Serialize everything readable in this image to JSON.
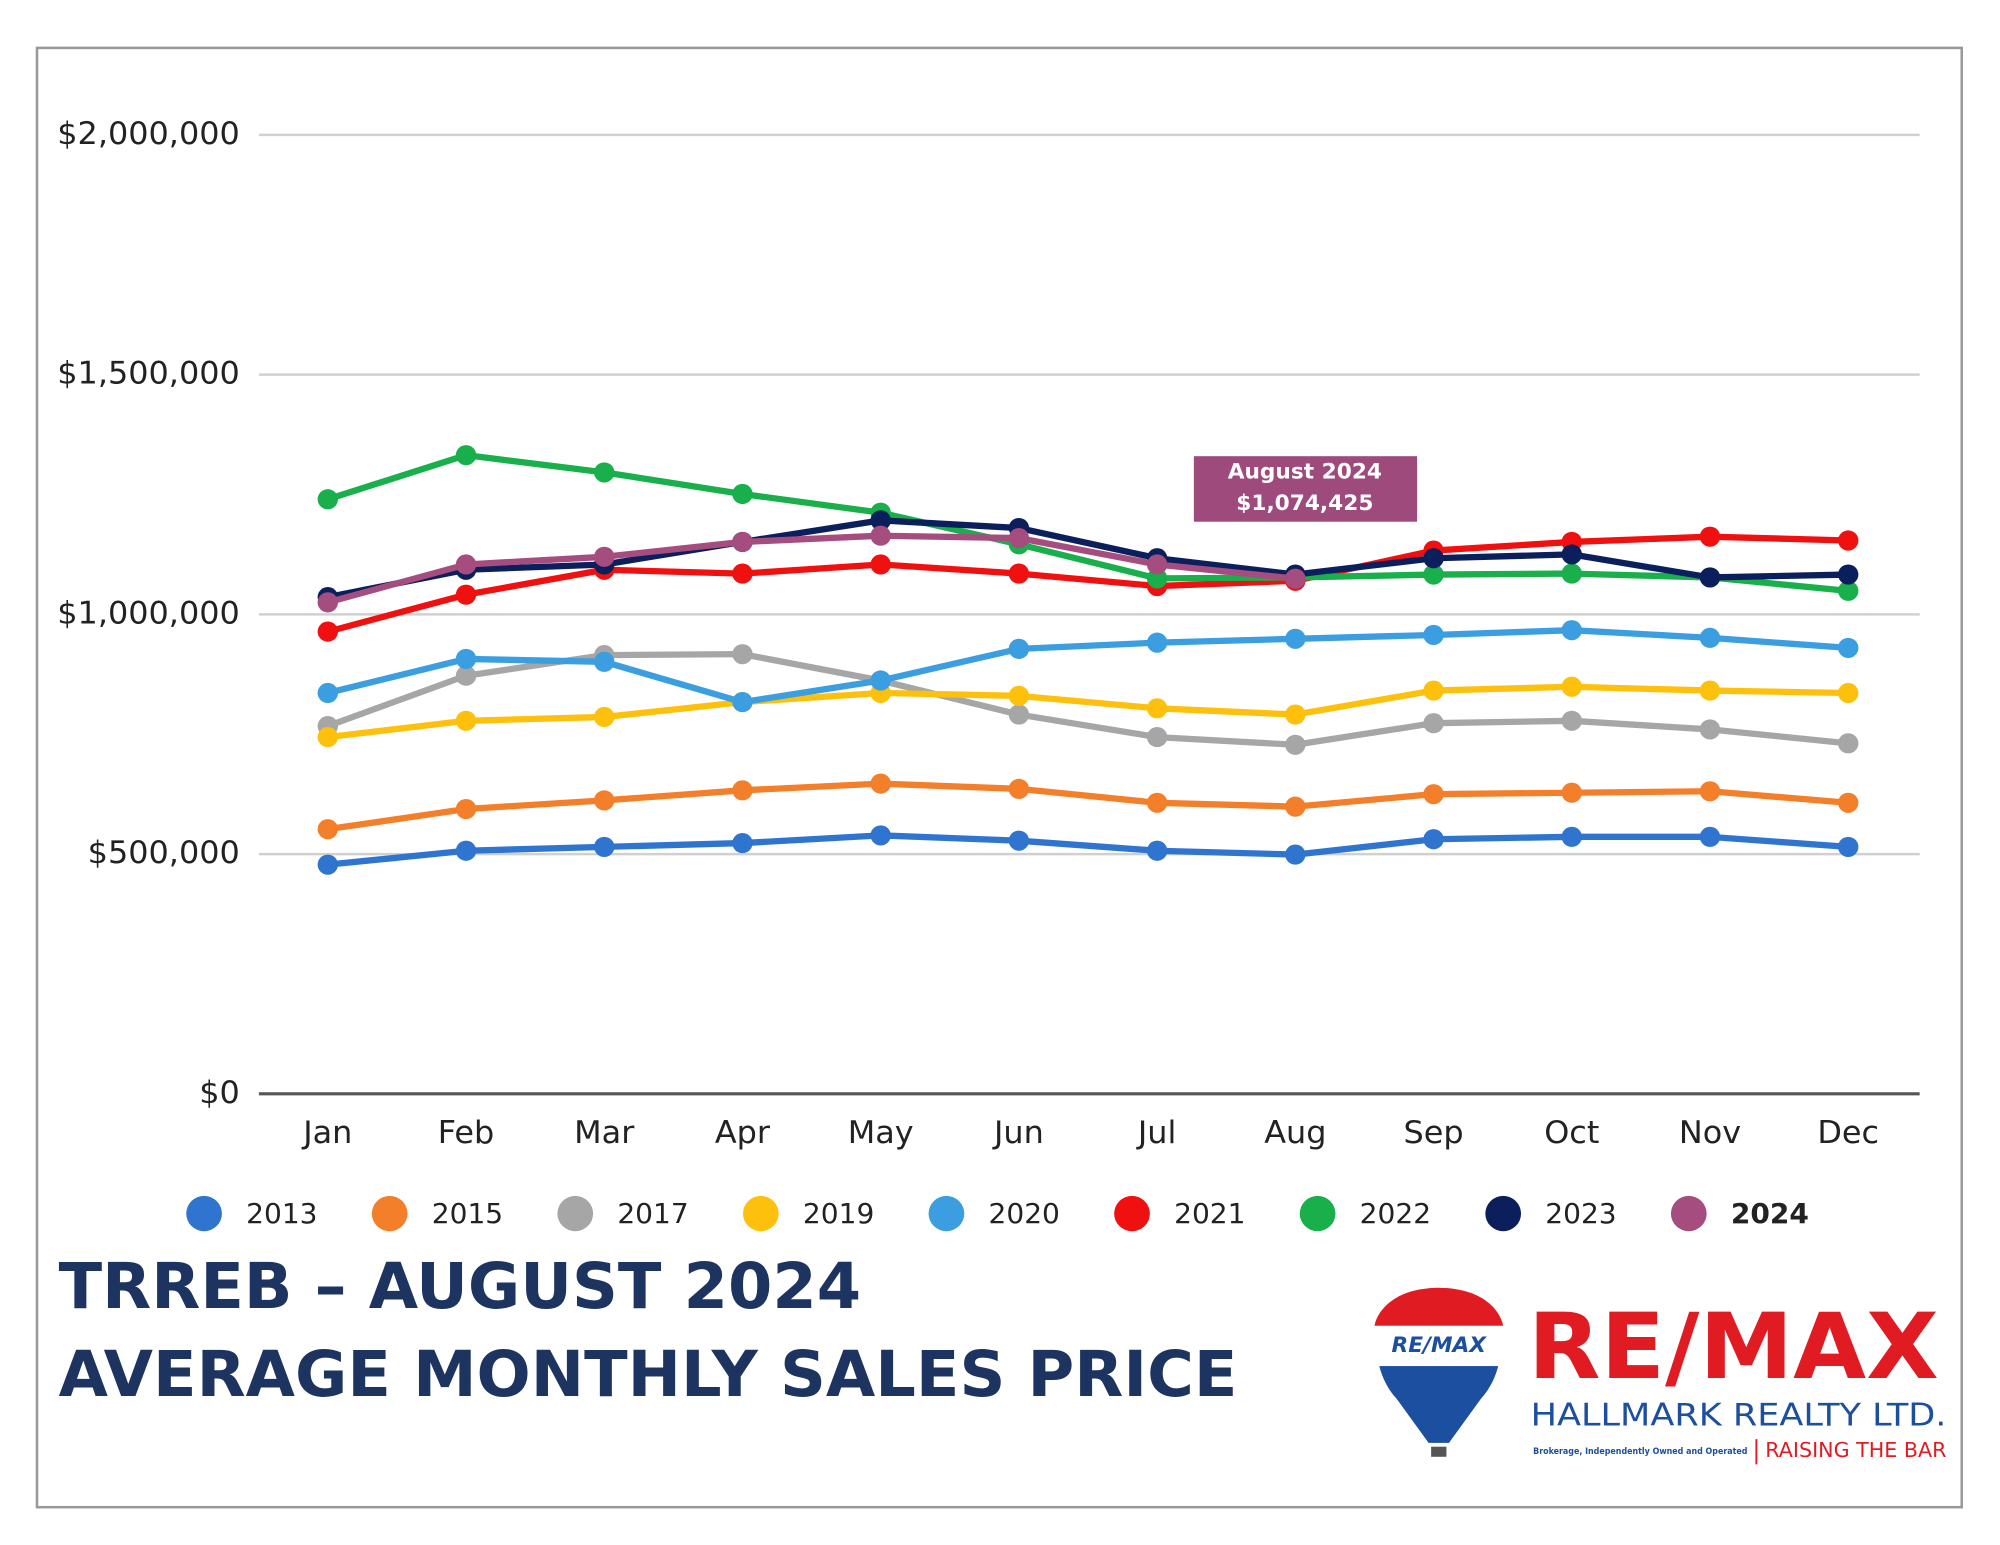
{
  "chart_data": {
    "type": "line",
    "categories": [
      "Jan",
      "Feb",
      "Mar",
      "Apr",
      "May",
      "Jun",
      "Jul",
      "Aug",
      "Sep",
      "Oct",
      "Nov",
      "Dec"
    ],
    "ylim": [
      0,
      2000000
    ],
    "yticks": [
      {
        "value": 0,
        "label": "$0"
      },
      {
        "value": 500000,
        "label": "$500,000"
      },
      {
        "value": 1000000,
        "label": "$1,000,000"
      },
      {
        "value": 1500000,
        "label": "$1,500,000"
      },
      {
        "value": 2000000,
        "label": "$2,000,000"
      }
    ],
    "grid": true,
    "legend": "bottom",
    "series": [
      {
        "name": "2013",
        "color": "#2f75cf",
        "values": [
          478000,
          507000,
          515000,
          523000,
          539000,
          528000,
          507000,
          499000,
          531000,
          536000,
          536000,
          515000
        ]
      },
      {
        "name": "2015",
        "color": "#f47f2a",
        "values": [
          552000,
          594000,
          612000,
          633000,
          647000,
          636000,
          607000,
          599000,
          625000,
          628000,
          631000,
          607000
        ]
      },
      {
        "name": "2017",
        "color": "#a6a6a6",
        "values": [
          767000,
          872000,
          915000,
          917000,
          862000,
          791000,
          744000,
          728000,
          773000,
          778000,
          760000,
          731000
        ]
      },
      {
        "name": "2019",
        "color": "#fdc10d",
        "values": [
          744000,
          778000,
          786000,
          817000,
          836000,
          830000,
          804000,
          791000,
          841000,
          849000,
          841000,
          836000
        ]
      },
      {
        "name": "2020",
        "color": "#3a9ee0",
        "values": [
          836000,
          907000,
          901000,
          817000,
          862000,
          928000,
          941000,
          949000,
          957000,
          967000,
          951000,
          930000
        ]
      },
      {
        "name": "2021",
        "color": "#f01010",
        "values": [
          964000,
          1041000,
          1093000,
          1085000,
          1104000,
          1085000,
          1059000,
          1070000,
          1133000,
          1151000,
          1162000,
          1154000
        ]
      },
      {
        "name": "2022",
        "color": "#19b04b",
        "values": [
          1240000,
          1332000,
          1296000,
          1251000,
          1212000,
          1146000,
          1075000,
          1077000,
          1083000,
          1085000,
          1077000,
          1049000
        ]
      },
      {
        "name": "2023",
        "color": "#0b1f5c",
        "values": [
          1036000,
          1093000,
          1104000,
          1151000,
          1196000,
          1180000,
          1117000,
          1083000,
          1117000,
          1125000,
          1077000,
          1083000
        ]
      },
      {
        "name": "2024",
        "color": "#a64d7f",
        "values": [
          1025000,
          1104000,
          1120000,
          1151000,
          1164000,
          1159000,
          1104000,
          1074425,
          null,
          null,
          null,
          null
        ]
      }
    ],
    "annotation": {
      "lines": [
        "August 2024",
        "$1,074,425"
      ],
      "color": "#9e4a7c"
    }
  },
  "title_lines": [
    "TRREB – AUGUST 2024",
    "AVERAGE MONTHLY SALES PRICE"
  ],
  "logo": {
    "balloon": "RE/MAX",
    "brand": "RE/MAX",
    "office": "HALLMARK REALTY LTD.",
    "note": "Brokerage, Independently Owned and Operated",
    "slogan": "RAISING THE BAR"
  }
}
